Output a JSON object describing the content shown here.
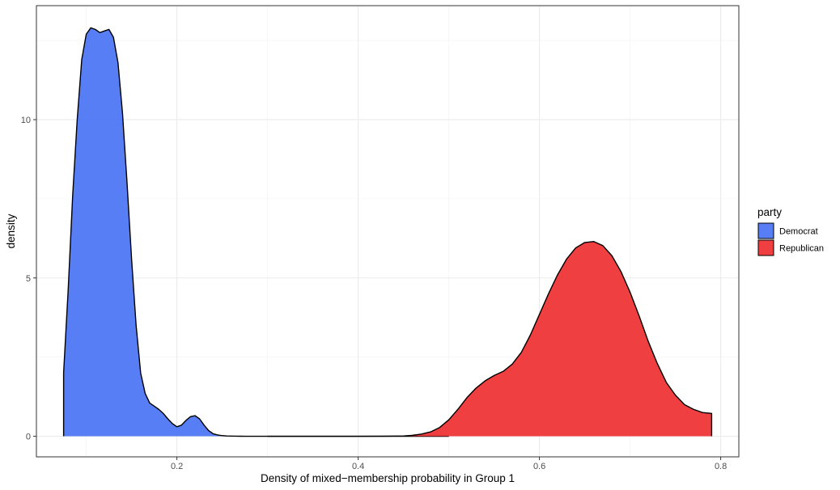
{
  "chart_data": {
    "type": "area",
    "xlabel": "Density of mixed−membership probability in Group 1",
    "ylabel": "density",
    "xlim": [
      0.045,
      0.82
    ],
    "ylim": [
      -0.65,
      13.6
    ],
    "x_ticks": [
      0.2,
      0.4,
      0.6,
      0.8
    ],
    "x_tick_labels": [
      "0.2",
      "0.4",
      "0.6",
      "0.8"
    ],
    "y_ticks": [
      0,
      5,
      10
    ],
    "y_tick_labels": [
      "0",
      "5",
      "10"
    ],
    "grid": true,
    "legend_title": "party",
    "legend_position": "right",
    "series": [
      {
        "name": "Democrat",
        "color": "#4A74F3",
        "x": [
          0.075,
          0.08,
          0.085,
          0.09,
          0.095,
          0.1,
          0.105,
          0.11,
          0.115,
          0.12,
          0.125,
          0.13,
          0.135,
          0.14,
          0.145,
          0.15,
          0.155,
          0.16,
          0.165,
          0.17,
          0.175,
          0.18,
          0.185,
          0.19,
          0.195,
          0.2,
          0.205,
          0.21,
          0.215,
          0.22,
          0.225,
          0.23,
          0.235,
          0.24,
          0.245,
          0.25,
          0.255,
          0.26,
          0.265,
          0.27,
          0.275,
          0.28,
          0.29,
          0.3,
          0.32,
          0.35,
          0.4,
          0.45,
          0.5
        ],
        "values": [
          2.0,
          4.6,
          7.6,
          10.0,
          11.9,
          12.7,
          12.9,
          12.85,
          12.75,
          12.8,
          12.85,
          12.6,
          11.8,
          10.2,
          8.0,
          5.6,
          3.5,
          2.0,
          1.35,
          1.05,
          0.95,
          0.85,
          0.72,
          0.55,
          0.4,
          0.3,
          0.35,
          0.5,
          0.62,
          0.65,
          0.55,
          0.35,
          0.18,
          0.08,
          0.04,
          0.02,
          0.01,
          0.005,
          0.002,
          0.001,
          0.0,
          0.0,
          0.0,
          0.0,
          0.0,
          0.0,
          0.0,
          0.0,
          0.0
        ]
      },
      {
        "name": "Republican",
        "color": "#EE3033",
        "x": [
          0.3,
          0.35,
          0.4,
          0.43,
          0.45,
          0.46,
          0.47,
          0.48,
          0.49,
          0.5,
          0.51,
          0.52,
          0.53,
          0.54,
          0.55,
          0.56,
          0.57,
          0.58,
          0.59,
          0.6,
          0.61,
          0.62,
          0.63,
          0.64,
          0.65,
          0.66,
          0.67,
          0.68,
          0.69,
          0.7,
          0.71,
          0.72,
          0.73,
          0.74,
          0.75,
          0.76,
          0.77,
          0.78,
          0.79
        ],
        "values": [
          0.0,
          0.0,
          0.0,
          0.002,
          0.01,
          0.03,
          0.07,
          0.14,
          0.28,
          0.52,
          0.85,
          1.22,
          1.52,
          1.75,
          1.92,
          2.05,
          2.28,
          2.65,
          3.2,
          3.85,
          4.5,
          5.1,
          5.6,
          5.95,
          6.12,
          6.15,
          6.02,
          5.7,
          5.2,
          4.55,
          3.8,
          3.0,
          2.3,
          1.7,
          1.3,
          1.0,
          0.85,
          0.75,
          0.72
        ]
      }
    ]
  }
}
